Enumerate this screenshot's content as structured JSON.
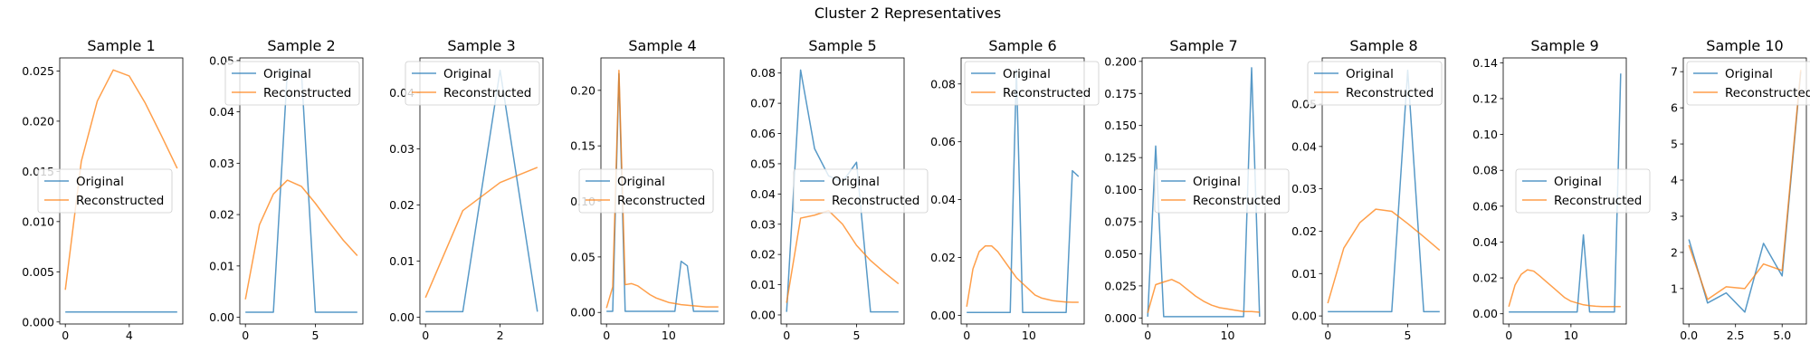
{
  "suptitle": "Cluster 2 Representatives",
  "colors": {
    "original": "#1f77b4",
    "reconstructed": "#ff7f0e"
  },
  "chart_data": [
    {
      "type": "line",
      "title": "Sample 1",
      "x": [
        0,
        1,
        2,
        3,
        4,
        5,
        6,
        7
      ],
      "series": [
        {
          "name": "Original",
          "values": [
            0.001,
            0.001,
            0.001,
            0.001,
            0.001,
            0.001,
            0.001,
            0.001
          ]
        },
        {
          "name": "Reconstructed",
          "values": [
            0.0032,
            0.016,
            0.022,
            0.0251,
            0.0245,
            0.0218,
            0.0186,
            0.0153
          ]
        }
      ],
      "xticks": [
        0,
        4
      ],
      "yticks": [
        0,
        0.005,
        0.01,
        0.015,
        0.02,
        0.025
      ],
      "ytick_labels": [
        "0.000",
        "0.005",
        "0.010",
        "0.015",
        "0.020",
        "0.025"
      ],
      "xlim": [
        -0.35,
        7.35
      ],
      "ylim": [
        -0.0002,
        0.0263
      ],
      "legend": "center-left"
    },
    {
      "type": "line",
      "title": "Sample 2",
      "x": [
        0,
        1,
        2,
        3,
        4,
        5,
        6,
        7,
        8
      ],
      "series": [
        {
          "name": "Original",
          "values": [
            0.001,
            0.001,
            0.001,
            0.048,
            0.048,
            0.001,
            0.001,
            0.001,
            0.001
          ]
        },
        {
          "name": "Reconstructed",
          "values": [
            0.0035,
            0.018,
            0.024,
            0.0267,
            0.0255,
            0.0222,
            0.0185,
            0.015,
            0.012
          ]
        }
      ],
      "xticks": [
        0,
        5
      ],
      "yticks": [
        0,
        0.01,
        0.02,
        0.03,
        0.04,
        0.05
      ],
      "ytick_labels": [
        "0.00",
        "0.01",
        "0.02",
        "0.03",
        "0.04",
        "0.05"
      ],
      "xlim": [
        -0.4,
        8.4
      ],
      "ylim": [
        -0.0013,
        0.0505
      ],
      "legend": "upper-right"
    },
    {
      "type": "line",
      "title": "Sample 3",
      "x": [
        0,
        1,
        2,
        3
      ],
      "series": [
        {
          "name": "Original",
          "values": [
            0.001,
            0.001,
            0.044,
            0.001
          ]
        },
        {
          "name": "Reconstructed",
          "values": [
            0.0035,
            0.019,
            0.024,
            0.0267
          ]
        }
      ],
      "xticks": [
        0,
        2
      ],
      "yticks": [
        0,
        0.01,
        0.02,
        0.03,
        0.04
      ],
      "ytick_labels": [
        "0.00",
        "0.01",
        "0.02",
        "0.03",
        "0.04"
      ],
      "xlim": [
        -0.15,
        3.15
      ],
      "ylim": [
        -0.0012,
        0.0462
      ],
      "legend": "upper-right"
    },
    {
      "type": "line",
      "title": "Sample 4",
      "x": [
        0,
        1,
        2,
        3,
        4,
        5,
        6,
        7,
        8,
        9,
        10,
        11,
        12,
        13,
        14,
        15,
        16,
        17,
        18
      ],
      "series": [
        {
          "name": "Original",
          "values": [
            0.001,
            0.001,
            0.215,
            0.001,
            0.001,
            0.001,
            0.001,
            0.001,
            0.001,
            0.001,
            0.001,
            0.001,
            0.046,
            0.042,
            0.001,
            0.001,
            0.001,
            0.001,
            0.001
          ]
        },
        {
          "name": "Reconstructed",
          "values": [
            0.004,
            0.023,
            0.218,
            0.025,
            0.026,
            0.024,
            0.02,
            0.016,
            0.013,
            0.011,
            0.009,
            0.008,
            0.007,
            0.0065,
            0.006,
            0.0055,
            0.005,
            0.005,
            0.005
          ]
        }
      ],
      "xticks": [
        0,
        10
      ],
      "yticks": [
        0,
        0.05,
        0.1,
        0.15,
        0.2
      ],
      "ytick_labels": [
        "0.00",
        "0.05",
        "0.10",
        "0.15",
        "0.20"
      ],
      "xlim": [
        -0.9,
        18.9
      ],
      "ylim": [
        -0.0104,
        0.2292
      ],
      "legend": "center-left"
    },
    {
      "type": "line",
      "title": "Sample 5",
      "x": [
        0,
        1,
        2,
        3,
        4,
        5,
        6,
        7,
        8
      ],
      "series": [
        {
          "name": "Original",
          "values": [
            0.001,
            0.081,
            0.055,
            0.046,
            0.044,
            0.0505,
            0.001,
            0.001,
            0.001
          ]
        },
        {
          "name": "Reconstructed",
          "values": [
            0.004,
            0.032,
            0.033,
            0.0345,
            0.03,
            0.023,
            0.018,
            0.014,
            0.0103
          ]
        }
      ],
      "xticks": [
        0,
        5
      ],
      "yticks": [
        0,
        0.01,
        0.02,
        0.03,
        0.04,
        0.05,
        0.06,
        0.07,
        0.08
      ],
      "ytick_labels": [
        "0.00",
        "0.01",
        "0.02",
        "0.03",
        "0.04",
        "0.05",
        "0.06",
        "0.07",
        "0.08"
      ],
      "xlim": [
        -0.4,
        8.4
      ],
      "ylim": [
        -0.003,
        0.085
      ],
      "legend": "center"
    },
    {
      "type": "line",
      "title": "Sample 6",
      "x": [
        0,
        1,
        2,
        3,
        4,
        5,
        6,
        7,
        8,
        9,
        10,
        11,
        12,
        13,
        14,
        15,
        16,
        17,
        18
      ],
      "series": [
        {
          "name": "Original",
          "values": [
            0.001,
            0.001,
            0.001,
            0.001,
            0.001,
            0.001,
            0.001,
            0.001,
            0.085,
            0.001,
            0.001,
            0.001,
            0.001,
            0.001,
            0.001,
            0.001,
            0.001,
            0.05,
            0.048
          ]
        },
        {
          "name": "Reconstructed",
          "values": [
            0.003,
            0.016,
            0.022,
            0.024,
            0.024,
            0.022,
            0.019,
            0.016,
            0.013,
            0.011,
            0.009,
            0.007,
            0.006,
            0.0055,
            0.005,
            0.0048,
            0.0046,
            0.0045,
            0.0045
          ]
        }
      ],
      "xticks": [
        0,
        10
      ],
      "yticks": [
        0,
        0.02,
        0.04,
        0.06,
        0.08
      ],
      "ytick_labels": [
        "0.00",
        "0.02",
        "0.04",
        "0.06",
        "0.08"
      ],
      "xlim": [
        -0.9,
        18.9
      ],
      "ylim": [
        -0.003,
        0.089
      ],
      "legend": "upper-left"
    },
    {
      "type": "line",
      "title": "Sample 7",
      "x": [
        0,
        1,
        2,
        3,
        4,
        5,
        6,
        7,
        8,
        9,
        10,
        11,
        12,
        13,
        14
      ],
      "series": [
        {
          "name": "Original",
          "values": [
            0.001,
            0.134,
            0.001,
            0.001,
            0.001,
            0.001,
            0.001,
            0.001,
            0.001,
            0.001,
            0.001,
            0.001,
            0.001,
            0.195,
            0.001
          ]
        },
        {
          "name": "Reconstructed",
          "values": [
            0.004,
            0.026,
            0.028,
            0.03,
            0.027,
            0.022,
            0.017,
            0.013,
            0.01,
            0.008,
            0.007,
            0.006,
            0.005,
            0.005,
            0.0045
          ]
        }
      ],
      "xticks": [
        0,
        10
      ],
      "yticks": [
        0,
        0.025,
        0.05,
        0.075,
        0.1,
        0.125,
        0.15,
        0.175,
        0.2
      ],
      "ytick_labels": [
        "0.000",
        "0.025",
        "0.050",
        "0.075",
        "0.100",
        "0.125",
        "0.150",
        "0.175",
        "0.200"
      ],
      "xlim": [
        -0.7,
        14.7
      ],
      "ylim": [
        -0.0047,
        0.2027
      ],
      "legend": "center"
    },
    {
      "type": "line",
      "title": "Sample 8",
      "x": [
        0,
        1,
        2,
        3,
        4,
        5,
        6,
        7
      ],
      "series": [
        {
          "name": "Original",
          "values": [
            0.001,
            0.001,
            0.001,
            0.001,
            0.001,
            0.058,
            0.001,
            0.001
          ]
        },
        {
          "name": "Reconstructed",
          "values": [
            0.003,
            0.016,
            0.022,
            0.0252,
            0.0247,
            0.0218,
            0.0187,
            0.0155
          ]
        }
      ],
      "xticks": [
        0,
        5
      ],
      "yticks": [
        0,
        0.01,
        0.02,
        0.03,
        0.04,
        0.05
      ],
      "ytick_labels": [
        "0.00",
        "0.01",
        "0.02",
        "0.03",
        "0.04",
        "0.05"
      ],
      "xlim": [
        -0.35,
        7.35
      ],
      "ylim": [
        -0.0019,
        0.0609
      ],
      "legend": "upper-right"
    },
    {
      "type": "line",
      "title": "Sample 9",
      "x": [
        0,
        1,
        2,
        3,
        4,
        5,
        6,
        7,
        8,
        9,
        10,
        11,
        12,
        13,
        14,
        15,
        16,
        17,
        18
      ],
      "series": [
        {
          "name": "Original",
          "values": [
            0.001,
            0.001,
            0.001,
            0.001,
            0.001,
            0.001,
            0.001,
            0.001,
            0.001,
            0.001,
            0.001,
            0.001,
            0.044,
            0.001,
            0.001,
            0.001,
            0.001,
            0.001,
            0.134
          ]
        },
        {
          "name": "Reconstructed",
          "values": [
            0.004,
            0.016,
            0.022,
            0.0245,
            0.0238,
            0.021,
            0.018,
            0.015,
            0.012,
            0.009,
            0.007,
            0.006,
            0.005,
            0.0045,
            0.0042,
            0.004,
            0.004,
            0.004,
            0.004
          ]
        }
      ],
      "xticks": [
        0,
        10
      ],
      "yticks": [
        0,
        0.02,
        0.04,
        0.06,
        0.08,
        0.1,
        0.12,
        0.14
      ],
      "ytick_labels": [
        "0.00",
        "0.02",
        "0.04",
        "0.06",
        "0.08",
        "0.10",
        "0.12",
        "0.14"
      ],
      "xlim": [
        -0.9,
        18.9
      ],
      "ylim": [
        -0.0057,
        0.1427
      ],
      "legend": "center"
    },
    {
      "type": "line",
      "title": "Sample 10",
      "x": [
        0,
        1,
        2,
        3,
        4,
        5,
        6
      ],
      "series": [
        {
          "name": "Original",
          "values": [
            2.36,
            0.6,
            0.88,
            0.35,
            2.25,
            1.35,
            7.0
          ]
        },
        {
          "name": "Reconstructed",
          "values": [
            2.2,
            0.7,
            1.05,
            1.0,
            1.68,
            1.5,
            7.05
          ]
        }
      ],
      "xticks": [
        0,
        2.5,
        5
      ],
      "yticks": [
        1,
        2,
        3,
        4,
        5,
        6,
        7
      ],
      "ytick_labels": [
        "1",
        "2",
        "3",
        "4",
        "5",
        "6",
        "7"
      ],
      "xtick_labels": [
        "0.0",
        "2.5",
        "5.0"
      ],
      "xlim": [
        -0.3,
        6.3
      ],
      "ylim": [
        0.02,
        7.38
      ],
      "legend": "upper-left"
    }
  ]
}
